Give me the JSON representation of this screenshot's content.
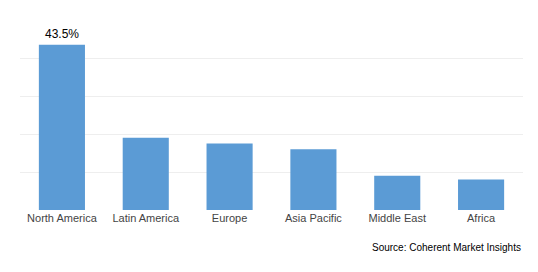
{
  "chart_data": {
    "type": "bar",
    "categories": [
      "North America",
      "Latin America",
      "Europe",
      "Asia Pacific",
      "Middle East",
      "Africa"
    ],
    "values": [
      43.5,
      19.0,
      17.5,
      16.0,
      9.0,
      8.0
    ],
    "color": "#5B9BD5",
    "ylim": [
      0,
      50
    ],
    "yticks": [
      0,
      10,
      20,
      30,
      40,
      50
    ],
    "grid": true,
    "tick_labels": "x",
    "annotations": [
      {
        "text": "43.5%",
        "x": "North America",
        "y": 43.5
      },
      {
        "text": "Source: Coherent Market Insights"
      }
    ]
  }
}
